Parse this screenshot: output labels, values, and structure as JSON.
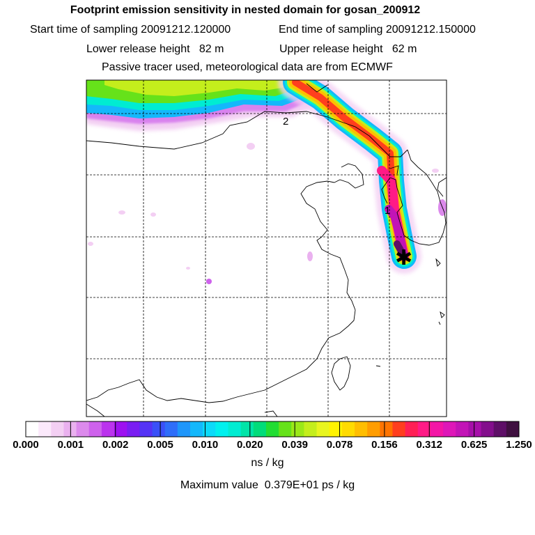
{
  "title": "Footprint emission sensitivity in nested domain for gosan_200912",
  "sampling": {
    "start_label": "Start time of sampling 20091212.120000",
    "end_label": "End time of sampling 20091212.150000"
  },
  "release": {
    "lower_label": "Lower release height   82 m",
    "upper_label": "Upper release height   62 m"
  },
  "tracer_info": "Passive tracer used, meteorological data are from ECMWF",
  "map": {
    "track_markers": [
      "1",
      "2"
    ],
    "receptor_symbol": "✱"
  },
  "colorbar": {
    "tick_labels": [
      "0.000",
      "0.001",
      "0.002",
      "0.005",
      "0.010",
      "0.020",
      "0.039",
      "0.078",
      "0.156",
      "0.312",
      "0.625",
      "1.250"
    ],
    "colors": [
      "#ffffff",
      "#fbe9fb",
      "#f3cff3",
      "#eab1ef",
      "#dc8aec",
      "#ce62ec",
      "#bb33ee",
      "#9d11f0",
      "#7a1ef2",
      "#5533f5",
      "#3a50f8",
      "#2f6ef9",
      "#1f96fa",
      "#14b8fb",
      "#0cdaf9",
      "#00f0ee",
      "#00ecd2",
      "#00e4a8",
      "#00dc7a",
      "#22dd33",
      "#66e21a",
      "#9be818",
      "#c4ee1c",
      "#e8f51f",
      "#fff300",
      "#ffdb00",
      "#ffbe00",
      "#ff9d00",
      "#ff7400",
      "#ff3e1e",
      "#ff1f55",
      "#ff1a86",
      "#f316a6",
      "#de17b8",
      "#c214b6",
      "#a60fa9",
      "#830f8c",
      "#5e0f67",
      "#3f1040"
    ],
    "unit": "ns / kg"
  },
  "maximum": "Maximum value  0.379E+01 ps / kg"
}
